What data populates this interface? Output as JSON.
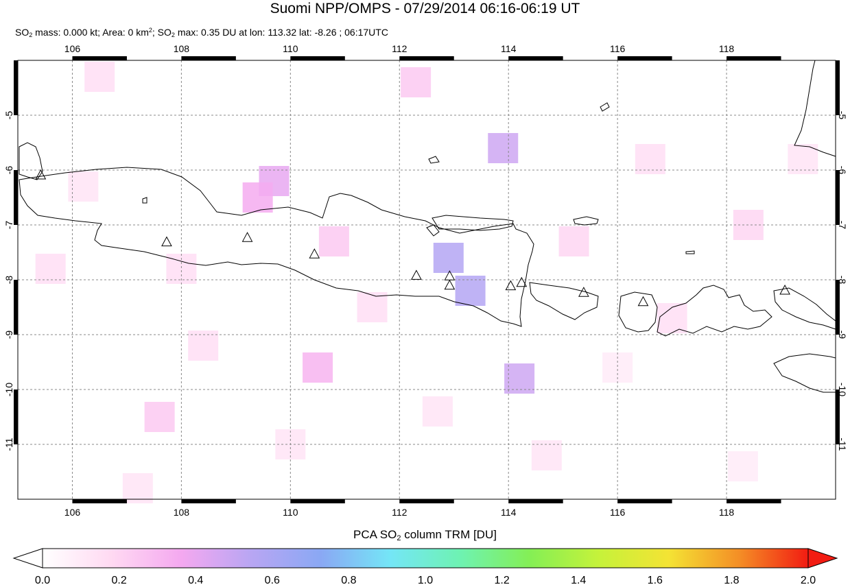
{
  "title": "Suomi NPP/OMPS - 07/29/2014 06:16-06:19 UT",
  "subtitle": {
    "so": "SO",
    "sub2": "2",
    "mass_text": " mass: 0.000 kt; Area: 0 km",
    "sup2": "2",
    "sep": "; SO",
    "max_text": " max: 0.35 DU at lon: 113.32 lat: -8.26 ; 06:17UTC"
  },
  "map": {
    "lon_range": [
      105,
      120
    ],
    "lat_range": [
      -12,
      -4
    ],
    "lon_ticks": [
      "106",
      "108",
      "110",
      "112",
      "114",
      "116",
      "118"
    ],
    "lat_ticks": [
      "-5",
      "-6",
      "-7",
      "-8",
      "-9",
      "-10",
      "-11"
    ],
    "volcano_icon": "triangle-icon",
    "volcanoes": [
      {
        "lon": 105.42,
        "lat": -6.1
      },
      {
        "lon": 107.73,
        "lat": -7.32
      },
      {
        "lon": 109.21,
        "lat": -7.24
      },
      {
        "lon": 110.44,
        "lat": -7.54
      },
      {
        "lon": 112.31,
        "lat": -7.93
      },
      {
        "lon": 112.92,
        "lat": -7.94
      },
      {
        "lon": 112.92,
        "lat": -8.11
      },
      {
        "lon": 114.04,
        "lat": -8.12
      },
      {
        "lon": 114.24,
        "lat": -8.06
      },
      {
        "lon": 115.38,
        "lat": -8.24
      },
      {
        "lon": 116.47,
        "lat": -8.41
      },
      {
        "lon": 119.07,
        "lat": -8.2
      }
    ],
    "so2_pixels": [
      {
        "lon": 112.9,
        "lat": -7.6,
        "du": 0.35
      },
      {
        "lon": 113.3,
        "lat": -8.2,
        "du": 0.35
      },
      {
        "lon": 114.2,
        "lat": -9.8,
        "du": 0.3
      },
      {
        "lon": 113.9,
        "lat": -5.6,
        "du": 0.3
      },
      {
        "lon": 109.7,
        "lat": -6.2,
        "du": 0.25
      },
      {
        "lon": 109.4,
        "lat": -6.5,
        "du": 0.22
      },
      {
        "lon": 110.5,
        "lat": -9.6,
        "du": 0.2
      },
      {
        "lon": 112.3,
        "lat": -4.4,
        "du": 0.15
      },
      {
        "lon": 110.8,
        "lat": -7.3,
        "du": 0.15
      },
      {
        "lon": 107.6,
        "lat": -10.5,
        "du": 0.15
      },
      {
        "lon": 106.5,
        "lat": -4.3,
        "du": 0.1
      },
      {
        "lon": 118.4,
        "lat": -7.0,
        "du": 0.12
      },
      {
        "lon": 115.2,
        "lat": -7.3,
        "du": 0.12
      },
      {
        "lon": 108.4,
        "lat": -9.2,
        "du": 0.1
      },
      {
        "lon": 105.6,
        "lat": -7.8,
        "du": 0.1
      },
      {
        "lon": 116.6,
        "lat": -5.8,
        "du": 0.1
      },
      {
        "lon": 111.5,
        "lat": -8.5,
        "du": 0.1
      },
      {
        "lon": 114.7,
        "lat": -11.2,
        "du": 0.08
      },
      {
        "lon": 107.2,
        "lat": -11.8,
        "du": 0.08
      },
      {
        "lon": 119.4,
        "lat": -5.8,
        "du": 0.08
      },
      {
        "lon": 117.0,
        "lat": -8.7,
        "du": 0.1
      },
      {
        "lon": 110.0,
        "lat": -11.0,
        "du": 0.08
      },
      {
        "lon": 112.7,
        "lat": -10.4,
        "du": 0.08
      },
      {
        "lon": 106.2,
        "lat": -6.3,
        "du": 0.08
      },
      {
        "lon": 108.0,
        "lat": -7.8,
        "du": 0.1
      },
      {
        "lon": 116.0,
        "lat": -9.6,
        "du": 0.06
      },
      {
        "lon": 118.3,
        "lat": -11.4,
        "du": 0.06
      }
    ]
  },
  "colorbar": {
    "title_pre": "PCA SO",
    "title_sub": "2",
    "title_post": " column TRM [DU]",
    "labels": [
      "0.0",
      "0.2",
      "0.4",
      "0.6",
      "0.8",
      "1.0",
      "1.2",
      "1.4",
      "1.6",
      "1.8",
      "2.0"
    ],
    "range": [
      0.0,
      2.0
    ],
    "colors": [
      "#ffffff",
      "#ffd9f2",
      "#f4a8f0",
      "#b8a6f3",
      "#8aa8f4",
      "#74e6f6",
      "#6ef2b2",
      "#84ef55",
      "#c6f23a",
      "#f4e334",
      "#f48f26",
      "#f21c12"
    ]
  }
}
